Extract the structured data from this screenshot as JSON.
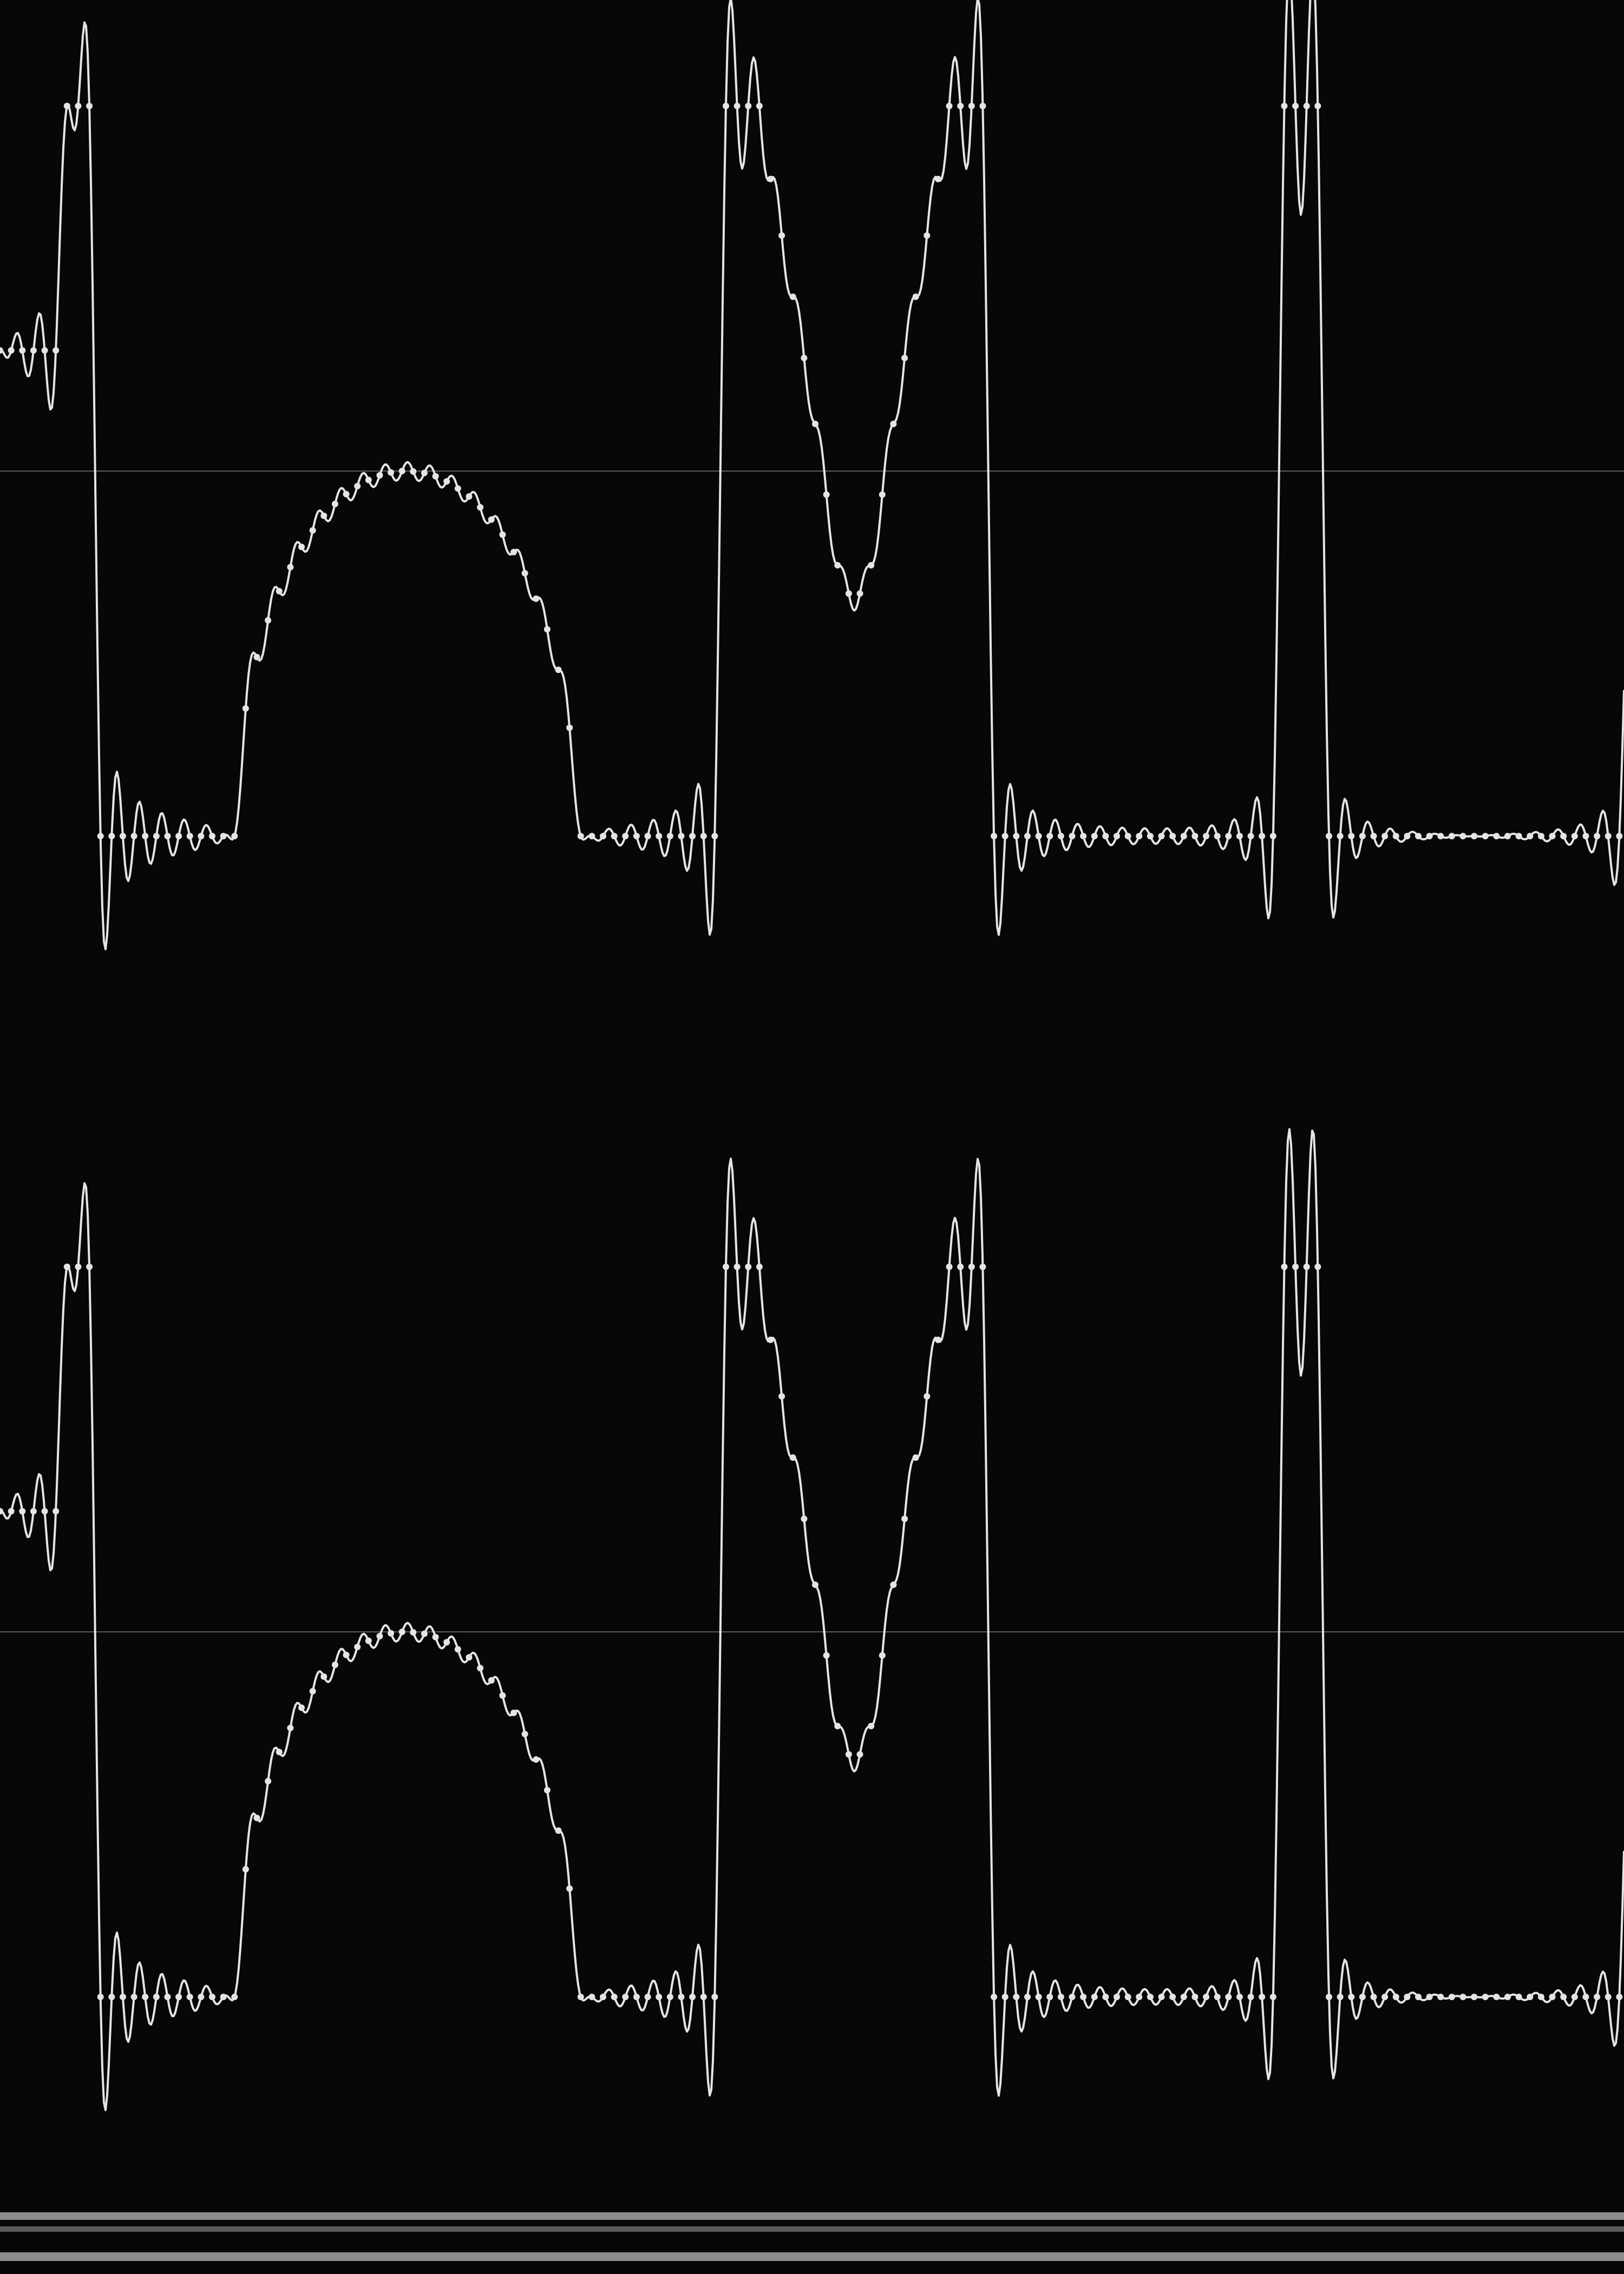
{
  "channels": [
    {
      "ylim": [
        -1,
        1
      ],
      "samples": [
        0.256,
        0.256,
        0.256,
        0.256,
        0.256,
        0.256,
        0.775,
        0.775,
        0.775,
        -0.775,
        -0.775,
        -0.775,
        -0.775,
        -0.775,
        -0.775,
        -0.775,
        -0.775,
        -0.775,
        -0.775,
        -0.775,
        -0.775,
        -0.775,
        -0.504,
        -0.395,
        -0.317,
        -0.255,
        -0.204,
        -0.161,
        -0.126,
        -0.095,
        -0.07,
        -0.049,
        -0.032,
        -0.019,
        -0.009,
        -0.003,
        0,
        -0.001,
        -0.004,
        -0.011,
        -0.022,
        -0.037,
        -0.054,
        -0.077,
        -0.103,
        -0.135,
        -0.172,
        -0.217,
        -0.271,
        -0.336,
        -0.422,
        -0.545,
        -0.775,
        -0.775,
        -0.775,
        -0.775,
        -0.775,
        -0.775,
        -0.775,
        -0.775,
        -0.775,
        -0.775,
        -0.775,
        -0.775,
        -0.775,
        0.775,
        0.775,
        0.775,
        0.775,
        0.62,
        0.5,
        0.37,
        0.24,
        0.1,
        -0.05,
        -0.2,
        -0.26,
        -0.26,
        -0.2,
        -0.05,
        0.1,
        0.24,
        0.37,
        0.5,
        0.62,
        0.775,
        0.775,
        0.775,
        0.775,
        -0.775,
        -0.775,
        -0.775,
        -0.775,
        -0.775,
        -0.775,
        -0.775,
        -0.775,
        -0.775,
        -0.775,
        -0.775,
        -0.775,
        -0.775,
        -0.775,
        -0.775,
        -0.775,
        -0.775,
        -0.775,
        -0.775,
        -0.775,
        -0.775,
        -0.775,
        -0.775,
        -0.775,
        -0.775,
        -0.775,
        0.775,
        0.775,
        0.775,
        0.775,
        -0.775,
        -0.775,
        -0.775,
        -0.775,
        -0.775,
        -0.775,
        -0.775,
        -0.775,
        -0.775,
        -0.775,
        -0.775,
        -0.775,
        -0.775,
        -0.775,
        -0.775,
        -0.775,
        -0.775,
        -0.775,
        -0.775,
        -0.775,
        -0.775,
        -0.775,
        -0.775,
        -0.775,
        -0.775,
        -0.775,
        -0.775
      ]
    },
    {
      "ylim": [
        -1,
        1
      ],
      "samples": [
        0.256,
        0.256,
        0.256,
        0.256,
        0.256,
        0.256,
        0.775,
        0.775,
        0.775,
        -0.775,
        -0.775,
        -0.775,
        -0.775,
        -0.775,
        -0.775,
        -0.775,
        -0.775,
        -0.775,
        -0.775,
        -0.775,
        -0.775,
        -0.775,
        -0.504,
        -0.395,
        -0.317,
        -0.255,
        -0.204,
        -0.161,
        -0.126,
        -0.095,
        -0.07,
        -0.049,
        -0.032,
        -0.019,
        -0.009,
        -0.003,
        0,
        -0.001,
        -0.004,
        -0.011,
        -0.022,
        -0.037,
        -0.054,
        -0.077,
        -0.103,
        -0.135,
        -0.172,
        -0.217,
        -0.271,
        -0.336,
        -0.422,
        -0.545,
        -0.775,
        -0.775,
        -0.775,
        -0.775,
        -0.775,
        -0.775,
        -0.775,
        -0.775,
        -0.775,
        -0.775,
        -0.775,
        -0.775,
        -0.775,
        0.775,
        0.775,
        0.775,
        0.775,
        0.62,
        0.5,
        0.37,
        0.24,
        0.1,
        -0.05,
        -0.2,
        -0.26,
        -0.26,
        -0.2,
        -0.05,
        0.1,
        0.24,
        0.37,
        0.5,
        0.62,
        0.775,
        0.775,
        0.775,
        0.775,
        -0.775,
        -0.775,
        -0.775,
        -0.775,
        -0.775,
        -0.775,
        -0.775,
        -0.775,
        -0.775,
        -0.775,
        -0.775,
        -0.775,
        -0.775,
        -0.775,
        -0.775,
        -0.775,
        -0.775,
        -0.775,
        -0.775,
        -0.775,
        -0.775,
        -0.775,
        -0.775,
        -0.775,
        -0.775,
        -0.775,
        0.775,
        0.775,
        0.775,
        0.775,
        -0.775,
        -0.775,
        -0.775,
        -0.775,
        -0.775,
        -0.775,
        -0.775,
        -0.775,
        -0.775,
        -0.775,
        -0.775,
        -0.775,
        -0.775,
        -0.775,
        -0.775,
        -0.775,
        -0.775,
        -0.775,
        -0.775,
        -0.775,
        -0.775,
        -0.775,
        -0.775,
        -0.775,
        -0.775,
        -0.775,
        -0.775
      ]
    }
  ]
}
